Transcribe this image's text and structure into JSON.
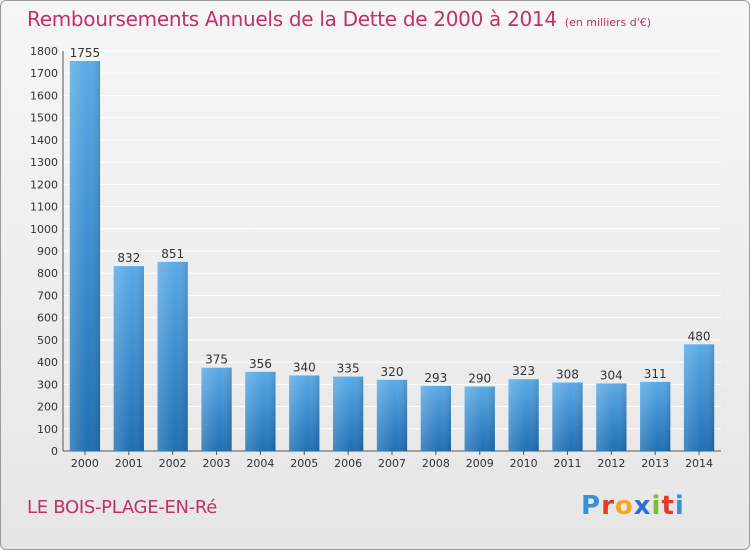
{
  "title": "Remboursements Annuels de la Dette de 2000 à 2014",
  "unit_note": "(en milliers d'€)",
  "commune": "LE BOIS-PLAGE-EN-Ré",
  "logo": {
    "text": "Proxiti",
    "letter_colors": [
      "#3a8fd6",
      "#e53a2a",
      "#f5a623",
      "#2f6fd0",
      "#7bbd3a",
      "#e53a2a",
      "#3a8fd6"
    ]
  },
  "colors": {
    "bar_top": "#5aaae6",
    "bar_bottom": "#1f6eb3",
    "title": "#c0306a",
    "grid": "#ffffff"
  },
  "chart_data": {
    "type": "bar",
    "categories": [
      "2000",
      "2001",
      "2002",
      "2003",
      "2004",
      "2005",
      "2006",
      "2007",
      "2008",
      "2009",
      "2010",
      "2011",
      "2012",
      "2013",
      "2014"
    ],
    "values": [
      1755,
      832,
      851,
      375,
      356,
      340,
      335,
      320,
      293,
      290,
      323,
      308,
      304,
      311,
      480
    ],
    "ylim": [
      0,
      1800
    ],
    "yticks": [
      0,
      100,
      200,
      300,
      400,
      500,
      600,
      700,
      800,
      900,
      1000,
      1100,
      1200,
      1300,
      1400,
      1500,
      1600,
      1700,
      1800
    ],
    "grid": true,
    "legend": "none",
    "title": "Remboursements Annuels de la Dette de 2000 à 2014",
    "xlabel": "",
    "ylabel": ""
  }
}
